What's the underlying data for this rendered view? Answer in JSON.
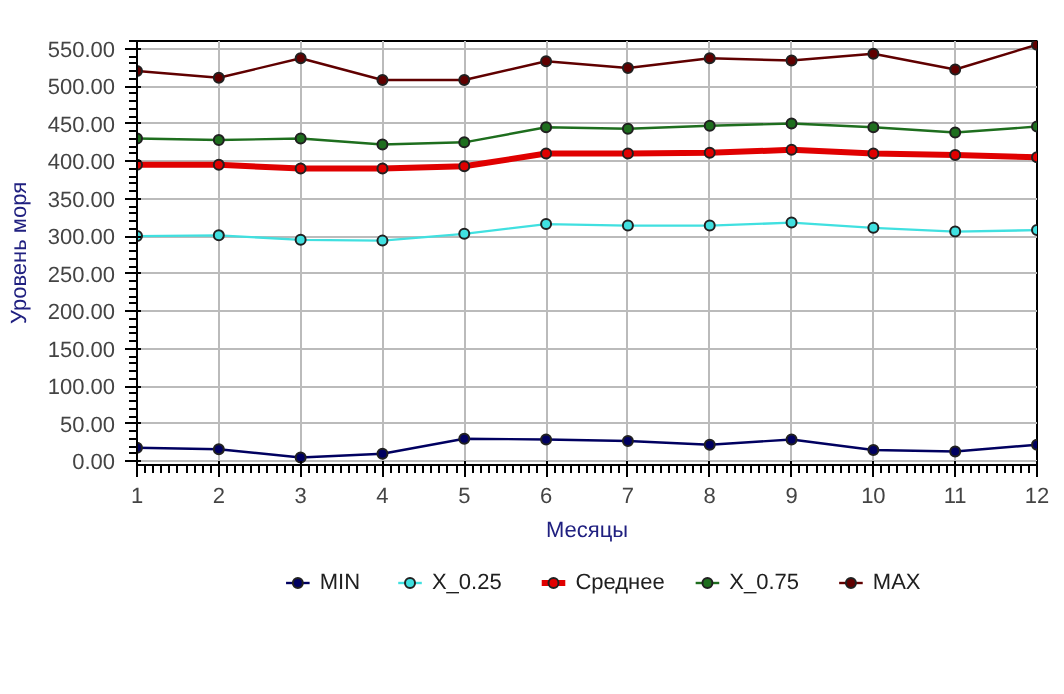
{
  "chart_data": {
    "type": "line",
    "xlabel": "Месяцы",
    "ylabel": "Уровень моря",
    "x": [
      1,
      2,
      3,
      4,
      5,
      6,
      7,
      8,
      9,
      10,
      11,
      12
    ],
    "xlim": [
      1,
      12
    ],
    "xticks": [
      1,
      2,
      3,
      4,
      5,
      6,
      7,
      8,
      9,
      10,
      11,
      12
    ],
    "ylim": [
      -5,
      560
    ],
    "yticks": [
      {
        "value": 0,
        "label": "0.00"
      },
      {
        "value": 50,
        "label": "50.00"
      },
      {
        "value": 100,
        "label": "100.00"
      },
      {
        "value": 150,
        "label": "150.00"
      },
      {
        "value": 200,
        "label": "200.00"
      },
      {
        "value": 250,
        "label": "250.00"
      },
      {
        "value": 300,
        "label": "300.00"
      },
      {
        "value": 350,
        "label": "350.00"
      },
      {
        "value": 400,
        "label": "400.00"
      },
      {
        "value": 450,
        "label": "450.00"
      },
      {
        "value": 500,
        "label": "500.00"
      },
      {
        "value": 550,
        "label": "550.00"
      }
    ],
    "grid": true,
    "legend": "bottom",
    "marker": "circle",
    "series": [
      {
        "name": "MIN",
        "color": "#000060",
        "values": [
          18,
          16,
          5,
          10,
          30,
          29,
          27,
          22,
          29,
          15,
          13,
          22
        ]
      },
      {
        "name": "X_0.25",
        "color": "#40e0e0",
        "values": [
          300,
          301,
          295,
          294,
          303,
          316,
          314,
          314,
          318,
          311,
          306,
          308
        ]
      },
      {
        "name": "Среднее",
        "color": "#e00000",
        "values": [
          395,
          395,
          390,
          390,
          393,
          410,
          410,
          411,
          415,
          410,
          408,
          405
        ]
      },
      {
        "name": "X_0.75",
        "color": "#1e6e1e",
        "values": [
          430,
          428,
          430,
          422,
          425,
          445,
          443,
          447,
          450,
          445,
          438,
          446
        ]
      },
      {
        "name": "MAX",
        "color": "#600000",
        "values": [
          520,
          511,
          537,
          508,
          508,
          533,
          524,
          537,
          534,
          543,
          522,
          555
        ]
      }
    ]
  }
}
